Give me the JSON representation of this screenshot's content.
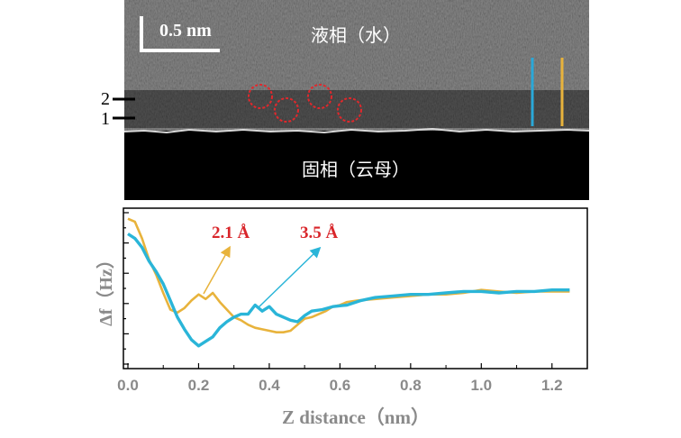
{
  "top_panel": {
    "scale_bar_label": "0.5 nm",
    "liquid_label": "液相（水）",
    "solid_label": "固相（云母）",
    "layer_labels": [
      "2",
      "1"
    ],
    "colors": {
      "water": "#7d7d7d",
      "mica": "#000000",
      "circle": "#e0282c",
      "blue_line": "#2aa8d8",
      "orange_line": "#e8b33c"
    }
  },
  "chart_data": {
    "type": "line",
    "xlabel": "Z distance（nm）",
    "ylabel": "Δf（Hz）",
    "xlim": [
      0.0,
      1.3
    ],
    "ylim": [
      0,
      10
    ],
    "x_ticks": [
      "0.0",
      "0.2",
      "0.4",
      "0.6",
      "0.8",
      "1.0",
      "1.2"
    ],
    "annotations": [
      {
        "text": "2.1 Å",
        "color": "#d9262b",
        "points_to": [
          0.21,
          4.9
        ]
      },
      {
        "text": "3.5 Å",
        "color": "#d9262b",
        "points_to": [
          0.36,
          4.8
        ]
      }
    ],
    "series": [
      {
        "color": "#e8b33c",
        "points": [
          [
            0.0,
            9.6
          ],
          [
            0.02,
            9.4
          ],
          [
            0.04,
            8.3
          ],
          [
            0.06,
            6.9
          ],
          [
            0.08,
            5.9
          ],
          [
            0.1,
            4.7
          ],
          [
            0.12,
            3.6
          ],
          [
            0.14,
            3.4
          ],
          [
            0.16,
            3.7
          ],
          [
            0.18,
            4.2
          ],
          [
            0.2,
            4.6
          ],
          [
            0.22,
            4.3
          ],
          [
            0.24,
            4.7
          ],
          [
            0.26,
            4.1
          ],
          [
            0.28,
            3.6
          ],
          [
            0.3,
            3.1
          ],
          [
            0.32,
            2.9
          ],
          [
            0.34,
            2.6
          ],
          [
            0.36,
            2.4
          ],
          [
            0.38,
            2.3
          ],
          [
            0.4,
            2.2
          ],
          [
            0.42,
            2.1
          ],
          [
            0.44,
            2.1
          ],
          [
            0.46,
            2.2
          ],
          [
            0.48,
            2.6
          ],
          [
            0.5,
            3.0
          ],
          [
            0.52,
            3.1
          ],
          [
            0.54,
            3.3
          ],
          [
            0.56,
            3.5
          ],
          [
            0.58,
            3.8
          ],
          [
            0.6,
            3.9
          ],
          [
            0.62,
            4.1
          ],
          [
            0.65,
            4.2
          ],
          [
            0.7,
            4.3
          ],
          [
            0.75,
            4.4
          ],
          [
            0.8,
            4.5
          ],
          [
            0.85,
            4.6
          ],
          [
            0.9,
            4.6
          ],
          [
            0.95,
            4.7
          ],
          [
            1.0,
            4.9
          ],
          [
            1.05,
            4.8
          ],
          [
            1.1,
            4.7
          ],
          [
            1.15,
            4.8
          ],
          [
            1.2,
            4.8
          ],
          [
            1.25,
            4.8
          ]
        ]
      },
      {
        "color": "#2ab5d8",
        "points": [
          [
            0.0,
            8.6
          ],
          [
            0.02,
            8.3
          ],
          [
            0.04,
            7.7
          ],
          [
            0.06,
            6.8
          ],
          [
            0.08,
            6.1
          ],
          [
            0.1,
            5.3
          ],
          [
            0.12,
            4.2
          ],
          [
            0.14,
            3.1
          ],
          [
            0.16,
            2.3
          ],
          [
            0.18,
            1.6
          ],
          [
            0.2,
            1.2
          ],
          [
            0.22,
            1.5
          ],
          [
            0.24,
            1.8
          ],
          [
            0.26,
            2.4
          ],
          [
            0.28,
            2.8
          ],
          [
            0.3,
            3.1
          ],
          [
            0.32,
            3.3
          ],
          [
            0.34,
            3.3
          ],
          [
            0.36,
            3.9
          ],
          [
            0.38,
            3.5
          ],
          [
            0.4,
            3.8
          ],
          [
            0.42,
            3.3
          ],
          [
            0.44,
            3.1
          ],
          [
            0.46,
            2.9
          ],
          [
            0.48,
            2.8
          ],
          [
            0.5,
            3.2
          ],
          [
            0.52,
            3.5
          ],
          [
            0.55,
            3.6
          ],
          [
            0.58,
            3.8
          ],
          [
            0.62,
            3.9
          ],
          [
            0.66,
            4.2
          ],
          [
            0.7,
            4.4
          ],
          [
            0.75,
            4.5
          ],
          [
            0.8,
            4.6
          ],
          [
            0.85,
            4.6
          ],
          [
            0.9,
            4.7
          ],
          [
            0.95,
            4.8
          ],
          [
            1.0,
            4.8
          ],
          [
            1.05,
            4.7
          ],
          [
            1.1,
            4.8
          ],
          [
            1.15,
            4.8
          ],
          [
            1.2,
            4.9
          ],
          [
            1.25,
            4.9
          ]
        ]
      }
    ]
  }
}
